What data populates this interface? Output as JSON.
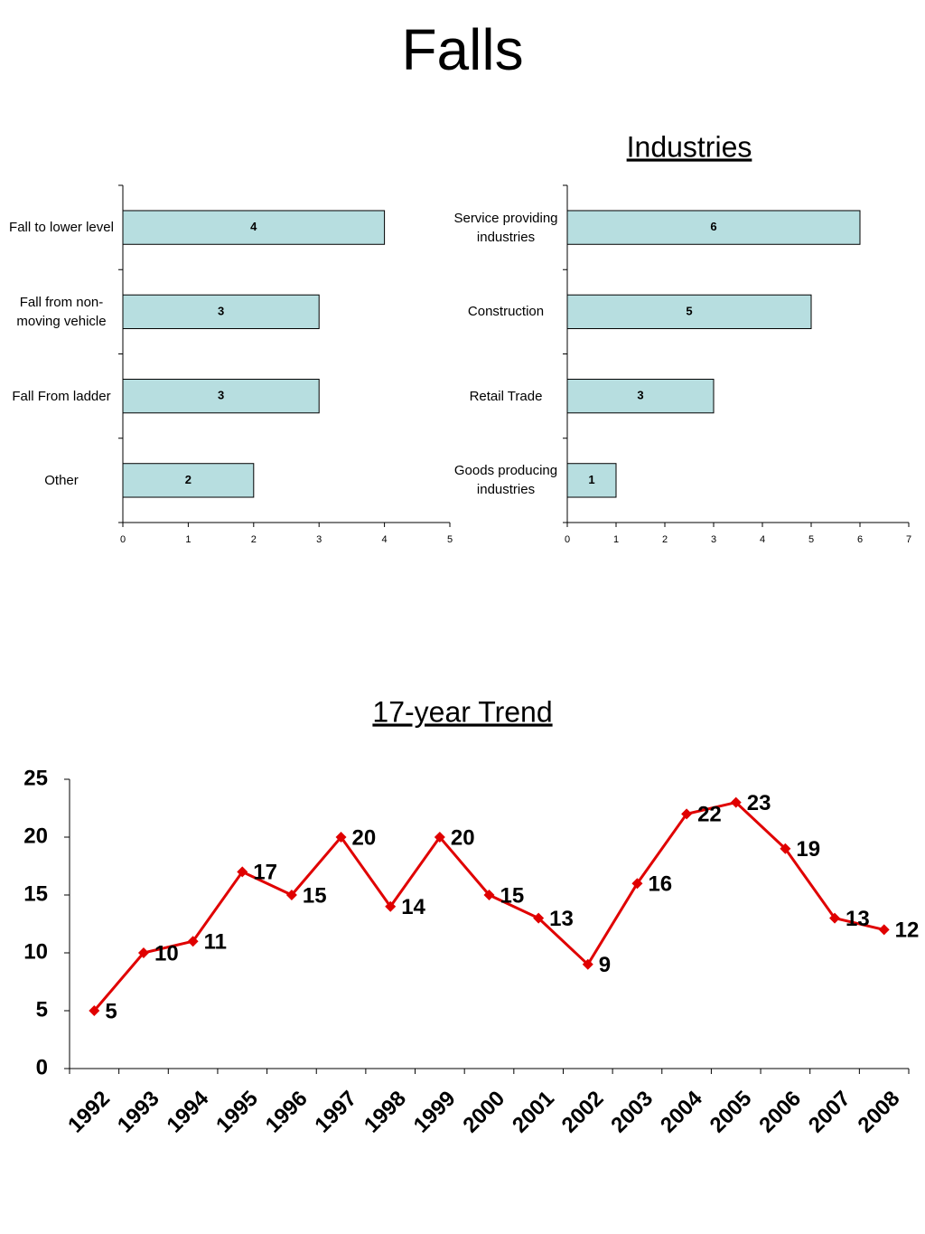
{
  "title": "Falls",
  "chart_data": [
    {
      "type": "bar",
      "orientation": "horizontal",
      "categories": [
        "Fall to lower level",
        "Fall from non-moving vehicle",
        "Fall From ladder",
        "Other"
      ],
      "values": [
        4,
        3,
        3,
        2
      ],
      "color": "#b7dee0",
      "xlim": [
        0,
        5
      ],
      "xticks": [
        0,
        1,
        2,
        3,
        4,
        5
      ]
    },
    {
      "type": "bar",
      "orientation": "horizontal",
      "title": "Industries",
      "categories": [
        "Service providing industries",
        "Construction",
        "Retail Trade",
        "Goods producing industries"
      ],
      "values": [
        6,
        5,
        3,
        1
      ],
      "color": "#b7dee0",
      "xlim": [
        0,
        7
      ],
      "xticks": [
        0,
        1,
        2,
        3,
        4,
        5,
        6,
        7
      ]
    },
    {
      "type": "line",
      "title": "17-year Trend",
      "categories": [
        "1992",
        "1993",
        "1994",
        "1995",
        "1996",
        "1997",
        "1998",
        "1999",
        "2000",
        "2001",
        "2002",
        "2003",
        "2004",
        "2005",
        "2006",
        "2007",
        "2008"
      ],
      "values": [
        5,
        10,
        11,
        17,
        15,
        20,
        14,
        20,
        15,
        13,
        9,
        16,
        22,
        23,
        19,
        13,
        12
      ],
      "color": "#e00000",
      "ylim": [
        0,
        25
      ],
      "yticks": [
        0,
        5,
        10,
        15,
        20,
        25
      ]
    }
  ]
}
